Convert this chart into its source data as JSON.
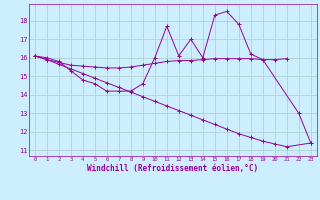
{
  "x": [
    0,
    1,
    2,
    3,
    4,
    5,
    6,
    7,
    8,
    9,
    10,
    11,
    12,
    13,
    14,
    15,
    16,
    17,
    18,
    19,
    20,
    21,
    22,
    23
  ],
  "line1": [
    16.1,
    16.0,
    15.8,
    15.3,
    14.8,
    14.6,
    14.2,
    14.2,
    14.2,
    14.6,
    16.0,
    17.7,
    16.1,
    17.0,
    16.0,
    18.3,
    18.5,
    17.8,
    16.2,
    15.9,
    null,
    null,
    13.0,
    11.4
  ],
  "line2": [
    16.1,
    15.9,
    15.75,
    15.6,
    15.55,
    15.5,
    15.45,
    15.45,
    15.5,
    15.6,
    15.7,
    15.8,
    15.85,
    15.85,
    15.9,
    15.95,
    15.95,
    15.95,
    15.95,
    15.9,
    15.9,
    15.95,
    null,
    null
  ],
  "line3": [
    16.1,
    15.9,
    15.65,
    15.4,
    15.15,
    14.9,
    14.65,
    14.4,
    14.15,
    13.9,
    13.65,
    13.4,
    13.15,
    12.9,
    12.65,
    12.4,
    12.15,
    11.9,
    11.7,
    11.5,
    11.35,
    11.2,
    null,
    11.4
  ],
  "color": "#990099",
  "bg_color": "#cceeff",
  "grid_color": "#aacccc",
  "ylabel_ticks": [
    11,
    12,
    13,
    14,
    15,
    16,
    17,
    18
  ],
  "xlabel": "Windchill (Refroidissement éolien,°C)",
  "xlim": [
    -0.5,
    23.5
  ],
  "ylim": [
    10.7,
    18.9
  ]
}
